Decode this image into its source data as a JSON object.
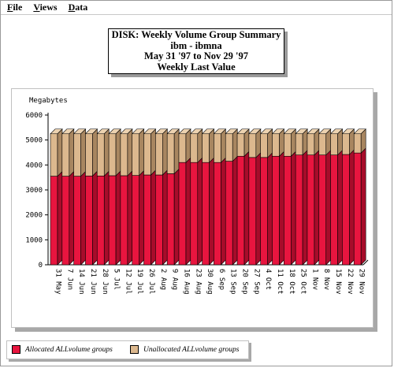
{
  "menu": [
    {
      "label": "File",
      "mnemonic": "F",
      "rest": "ile"
    },
    {
      "label": "Views",
      "mnemonic": "V",
      "rest": "iews"
    },
    {
      "label": "Data",
      "mnemonic": "D",
      "rest": "ata"
    }
  ],
  "title": {
    "line1": "DISK: Weekly Volume Group Summary",
    "line2": "ibm - ibmna",
    "line3": "May 31 '97 to Nov 29 '97",
    "line4": "Weekly Last Value"
  },
  "colors": {
    "allocated": "#e8153f",
    "allocated_side": "#a70c2a",
    "allocated_top": "#f04a6a",
    "unallocated": "#dcb88e",
    "unallocated_side": "#a88660",
    "unallocated_top": "#ecd2b0"
  },
  "chart_data": {
    "type": "bar",
    "stacked": true,
    "ylabel": "Megabytes",
    "ylim": [
      0,
      6000
    ],
    "yticks": [
      0,
      1000,
      2000,
      3000,
      4000,
      5000,
      6000
    ],
    "grid": false,
    "legend_position": "bottom",
    "categories": [
      "31 May",
      "7 Jun",
      "14 Jun",
      "21 Jun",
      "28 Jun",
      "5 Jul",
      "12 Jul",
      "19 Jul",
      "26 Jul",
      "2 Aug",
      "9 Aug",
      "16 Aug",
      "23 Aug",
      "30 Aug",
      "6 Sep",
      "13 Sep",
      "20 Sep",
      "27 Sep",
      "4 Oct",
      "11 Oct",
      "18 Oct",
      "25 Oct",
      "1 Nov",
      "8 Nov",
      "15 Nov",
      "22 Nov",
      "29 Nov"
    ],
    "series": [
      {
        "name": "Allocated ALLvolume groups",
        "values": [
          3550,
          3550,
          3550,
          3560,
          3560,
          3570,
          3570,
          3580,
          3600,
          3600,
          3650,
          4100,
          4100,
          4100,
          4100,
          4150,
          4350,
          4300,
          4300,
          4350,
          4350,
          4400,
          4400,
          4400,
          4400,
          4420,
          4480
        ]
      },
      {
        "name": "Unallocated ALLvolume groups",
        "values": [
          1700,
          1700,
          1700,
          1690,
          1690,
          1680,
          1680,
          1670,
          1650,
          1650,
          1600,
          1150,
          1150,
          1150,
          1150,
          1100,
          900,
          950,
          950,
          900,
          900,
          850,
          850,
          850,
          850,
          830,
          770
        ]
      }
    ]
  }
}
